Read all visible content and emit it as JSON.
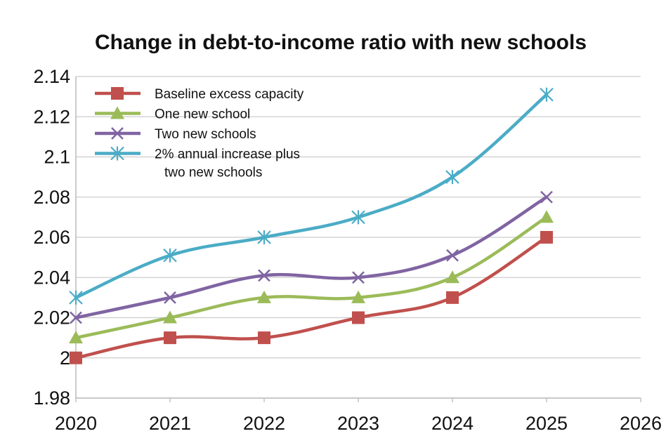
{
  "chart_data": {
    "type": "line",
    "title": "Change in debt-to-income ratio with new schools",
    "xlabel": "",
    "ylabel": "",
    "x": [
      2020,
      2021,
      2022,
      2023,
      2024,
      2025
    ],
    "xlim": [
      2020,
      2026
    ],
    "ylim": [
      1.98,
      2.14
    ],
    "x_ticks": [
      "2020",
      "2021",
      "2022",
      "2023",
      "2024",
      "2025",
      "2026"
    ],
    "y_ticks": [
      "1.98",
      "2",
      "2.02",
      "2.04",
      "2.06",
      "2.08",
      "2.1",
      "2.12",
      "2.14"
    ],
    "y_tick_values": [
      1.98,
      2.0,
      2.02,
      2.04,
      2.06,
      2.08,
      2.1,
      2.12,
      2.14
    ],
    "grid": "horizontal",
    "legend_position": "top-left",
    "series": [
      {
        "name": "Baseline excess capacity",
        "marker": "square",
        "color": "#c0504d",
        "values": [
          2.0,
          2.01,
          2.01,
          2.02,
          2.03,
          2.06
        ]
      },
      {
        "name": "One new school",
        "marker": "triangle",
        "color": "#9bbb59",
        "values": [
          2.01,
          2.02,
          2.03,
          2.03,
          2.04,
          2.07
        ]
      },
      {
        "name": "Two new schools",
        "marker": "x",
        "color": "#8064a2",
        "values": [
          2.02,
          2.03,
          2.041,
          2.04,
          2.051,
          2.08
        ]
      },
      {
        "name": "2% annual increase plus two new schools",
        "legend_lines": [
          "2% annual increase plus",
          "two new schools"
        ],
        "marker": "asterisk",
        "color": "#4bacc6",
        "values": [
          2.03,
          2.051,
          2.06,
          2.07,
          2.09,
          2.131
        ]
      }
    ]
  }
}
